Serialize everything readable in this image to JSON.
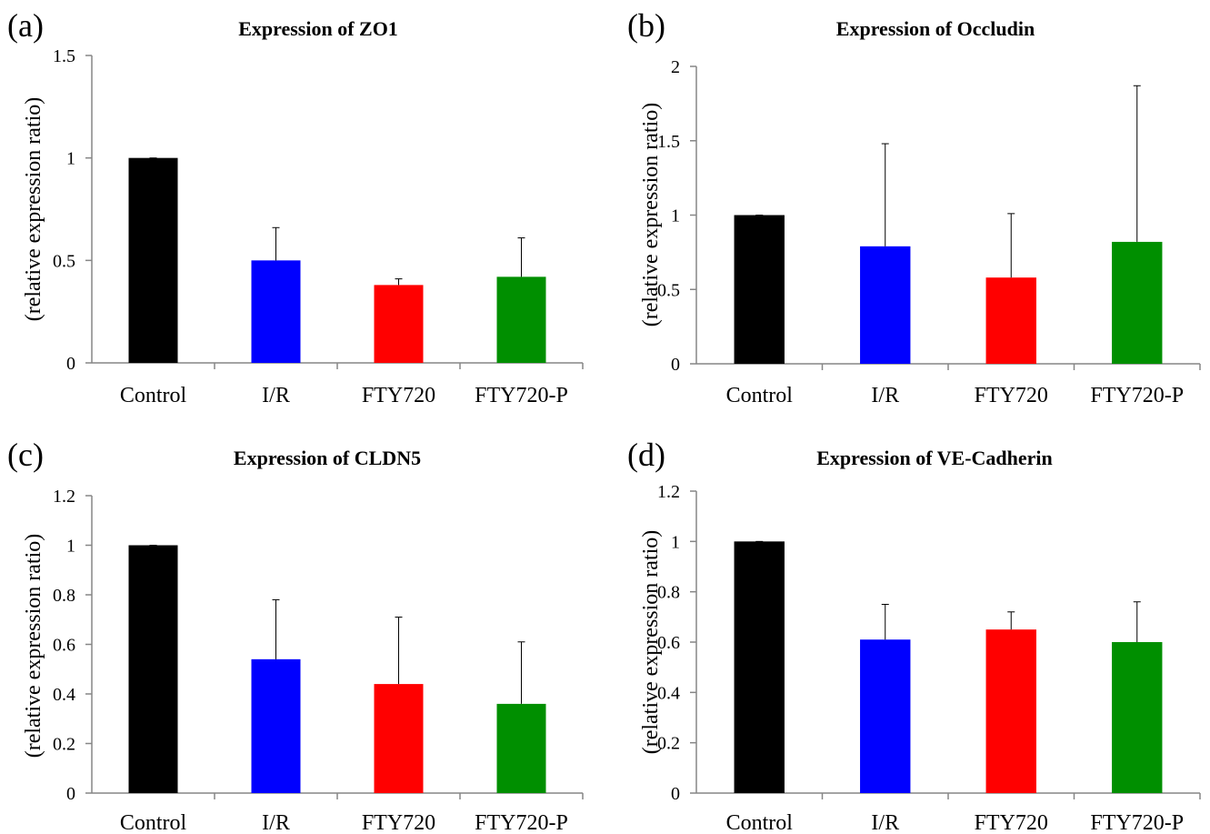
{
  "colors": {
    "Control": "#000000",
    "I/R": "#0000ff",
    "FTY720": "#ff0000",
    "FTY720-P": "#008f00",
    "axis": "#868686"
  },
  "chart_data": [
    {
      "type": "bar",
      "panel": "(a)",
      "title": "Expression of ZO1",
      "xlabel": "",
      "ylabel": "(relative expression ratio)",
      "categories": [
        "Control",
        "I/R",
        "FTY720",
        "FTY720-P"
      ],
      "values": [
        1.0,
        0.5,
        0.38,
        0.42
      ],
      "errors": [
        0.0,
        0.16,
        0.03,
        0.19
      ],
      "ylim": [
        0,
        1.5
      ],
      "yticks": [
        0,
        0.5,
        1,
        1.5
      ],
      "ytick_labels": [
        "0",
        "0.5",
        "1",
        "1.5"
      ],
      "grid": false
    },
    {
      "type": "bar",
      "panel": "(b)",
      "title": "Expression of Occludin",
      "xlabel": "",
      "ylabel": "(relative expression ratio)",
      "categories": [
        "Control",
        "I/R",
        "FTY720",
        "FTY720-P"
      ],
      "values": [
        1.0,
        0.79,
        0.58,
        0.82
      ],
      "errors": [
        0.0,
        0.69,
        0.43,
        1.05
      ],
      "ylim": [
        0,
        2
      ],
      "yticks": [
        0,
        0.5,
        1,
        1.5,
        2
      ],
      "ytick_labels": [
        "0",
        "0.5",
        "1",
        "1.5",
        "2"
      ],
      "grid": false
    },
    {
      "type": "bar",
      "panel": "(c)",
      "title": "Expression of CLDN5",
      "xlabel": "",
      "ylabel": "(relative expression ratio)",
      "categories": [
        "Control",
        "I/R",
        "FTY720",
        "FTY720-P"
      ],
      "values": [
        1.0,
        0.54,
        0.44,
        0.36
      ],
      "errors": [
        0.0,
        0.24,
        0.27,
        0.25
      ],
      "ylim": [
        0,
        1.2
      ],
      "yticks": [
        0,
        0.2,
        0.4,
        0.6,
        0.8,
        1,
        1.2
      ],
      "ytick_labels": [
        "0",
        "0.2",
        "0.4",
        "0.6",
        "0.8",
        "1",
        "1.2"
      ],
      "grid": false
    },
    {
      "type": "bar",
      "panel": "(d)",
      "title": "Expression of VE-Cadherin",
      "xlabel": "",
      "ylabel": "(relative expression ratio)",
      "categories": [
        "Control",
        "I/R",
        "FTY720",
        "FTY720-P"
      ],
      "values": [
        1.0,
        0.61,
        0.65,
        0.6
      ],
      "errors": [
        0.0,
        0.14,
        0.07,
        0.16
      ],
      "ylim": [
        0,
        1.2
      ],
      "yticks": [
        0,
        0.2,
        0.4,
        0.6,
        0.8,
        1,
        1.2
      ],
      "ytick_labels": [
        "0",
        "0.2",
        "0.4",
        "0.6",
        "0.8",
        "1",
        "1.2"
      ],
      "grid": false
    }
  ]
}
